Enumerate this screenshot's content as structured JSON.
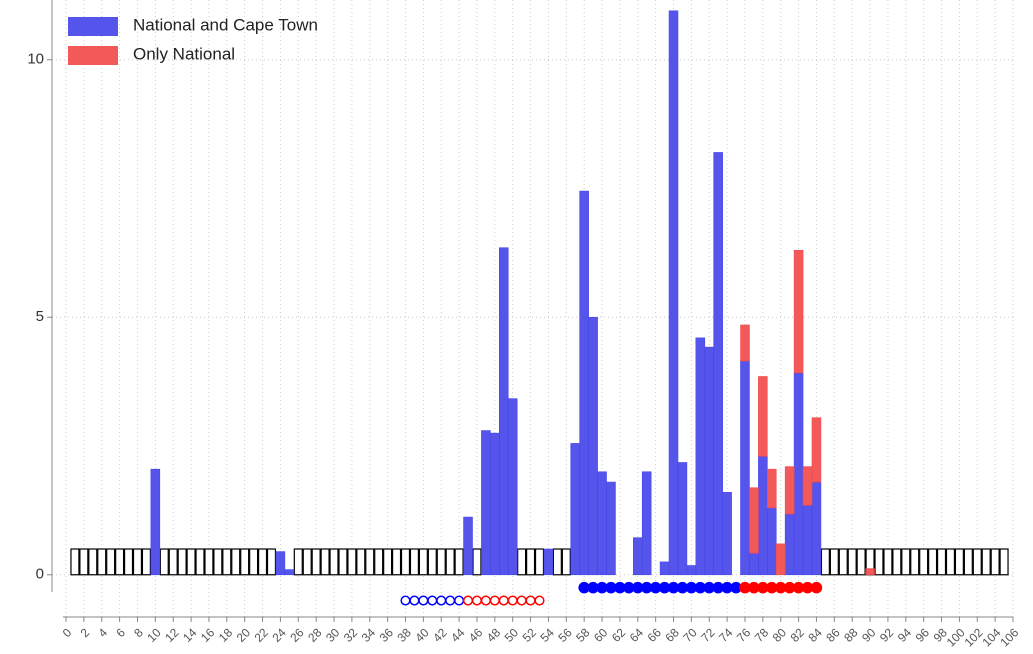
{
  "chart_data": {
    "type": "stacked_bar",
    "x": [
      10,
      24,
      25,
      45,
      47,
      48,
      49,
      50,
      54,
      57,
      58,
      59,
      60,
      61,
      64,
      65,
      67,
      68,
      69,
      70,
      71,
      72,
      73,
      74,
      76,
      77,
      78,
      79,
      80,
      81,
      82,
      83,
      84,
      90
    ],
    "series": [
      {
        "name": "National and Cape Town",
        "color": "#4646ea",
        "values": [
          2.05,
          0.45,
          0.1,
          1.12,
          2.8,
          2.75,
          6.35,
          3.42,
          0.5,
          2.55,
          7.45,
          5.0,
          2.0,
          1.8,
          0.72,
          2.0,
          0.25,
          10.95,
          2.18,
          0.18,
          4.6,
          4.42,
          8.2,
          1.6,
          4.15,
          0.42,
          2.3,
          1.3,
          null,
          1.18,
          3.92,
          1.35,
          1.8,
          null
        ]
      },
      {
        "name": "Only National",
        "color": "#f24b4b",
        "values": [
          null,
          null,
          null,
          null,
          null,
          null,
          null,
          null,
          null,
          null,
          null,
          null,
          null,
          null,
          null,
          null,
          null,
          null,
          null,
          null,
          null,
          null,
          null,
          null,
          0.7,
          1.27,
          1.55,
          0.75,
          0.6,
          0.92,
          2.38,
          0.75,
          1.25,
          0.12
        ]
      }
    ],
    "outline_boxes": {
      "height": 0.5,
      "color": "#000000",
      "x": [
        1,
        2,
        3,
        4,
        5,
        6,
        7,
        8,
        9,
        11,
        12,
        13,
        14,
        15,
        16,
        17,
        18,
        19,
        20,
        21,
        22,
        23,
        26,
        27,
        28,
        29,
        30,
        31,
        32,
        33,
        34,
        35,
        36,
        37,
        38,
        39,
        40,
        41,
        42,
        43,
        44,
        46,
        51,
        52,
        53,
        55,
        56,
        85,
        86,
        87,
        88,
        89,
        90,
        91,
        92,
        93,
        94,
        95,
        96,
        97,
        98,
        99,
        100,
        101,
        102,
        103,
        104,
        105
      ]
    },
    "markers": [
      {
        "color": "#0000ff",
        "filled": false,
        "y": -0.5,
        "x": [
          38,
          39,
          40,
          41,
          42,
          43,
          44
        ]
      },
      {
        "color": "#ff0000",
        "filled": false,
        "y": -0.5,
        "x": [
          45,
          46,
          47,
          48,
          49,
          50,
          51,
          52,
          53
        ]
      },
      {
        "color": "#0000ff",
        "filled": true,
        "y": -0.25,
        "x": [
          58,
          59,
          60,
          61,
          62,
          63,
          64,
          65,
          66,
          67,
          68,
          69,
          70,
          71,
          72,
          73,
          74,
          75
        ]
      },
      {
        "color": "#ff0000",
        "filled": true,
        "y": -0.25,
        "x": [
          76,
          77,
          78,
          79,
          80,
          81,
          82,
          83,
          84
        ]
      }
    ],
    "xlim": [
      0,
      106
    ],
    "ylim": [
      -0.82,
      11.16
    ],
    "xticks": [
      0,
      2,
      4,
      6,
      8,
      10,
      12,
      14,
      16,
      18,
      20,
      22,
      24,
      26,
      28,
      30,
      32,
      34,
      36,
      38,
      40,
      42,
      44,
      46,
      48,
      50,
      52,
      54,
      56,
      58,
      60,
      62,
      64,
      66,
      68,
      70,
      72,
      74,
      76,
      78,
      80,
      82,
      84,
      86,
      88,
      90,
      92,
      94,
      96,
      98,
      100,
      102,
      104,
      106
    ],
    "yticks": [
      0,
      5,
      10
    ],
    "grid": true,
    "legend": "top-left"
  }
}
